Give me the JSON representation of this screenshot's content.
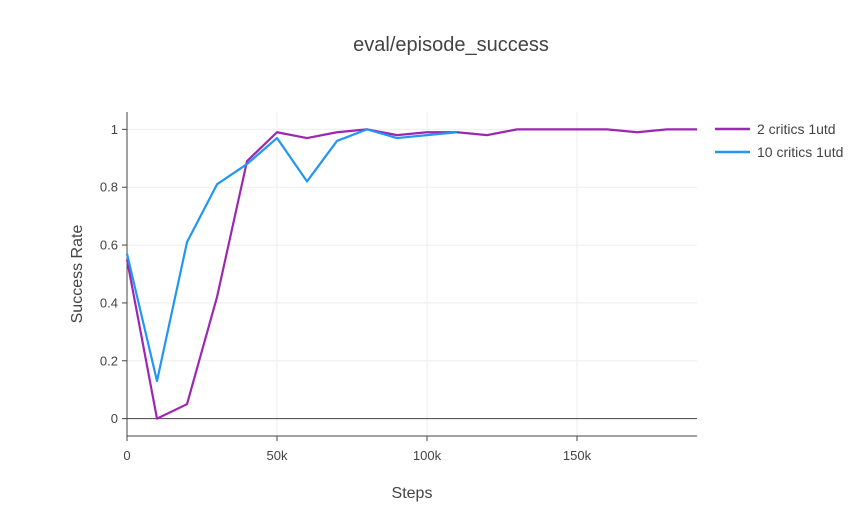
{
  "chart_data": {
    "type": "line",
    "title": "eval/episode_success",
    "xlabel": "Steps",
    "ylabel": "Success Rate",
    "xlim": [
      0,
      190000
    ],
    "ylim": [
      -0.06,
      1.06
    ],
    "x_ticks": [
      0,
      50000,
      100000,
      150000
    ],
    "x_tick_labels": [
      "0",
      "50k",
      "100k",
      "150k"
    ],
    "y_ticks": [
      0,
      0.2,
      0.4,
      0.6,
      0.8,
      1
    ],
    "y_tick_labels": [
      "0",
      "0.2",
      "0.4",
      "0.6",
      "0.8",
      "1"
    ],
    "grid": true,
    "legend_position": "top-right",
    "series": [
      {
        "name": "2 critics 1utd",
        "color": "#9c27b0",
        "x": [
          0,
          10000,
          20000,
          30000,
          40000,
          50000,
          60000,
          70000,
          80000,
          90000,
          100000,
          110000,
          120000,
          130000,
          140000,
          150000,
          160000,
          170000,
          180000,
          190000
        ],
        "y": [
          0.55,
          0.0,
          0.05,
          0.42,
          0.89,
          0.99,
          0.97,
          0.99,
          1.0,
          0.98,
          0.99,
          0.99,
          0.98,
          1.0,
          1.0,
          1.0,
          1.0,
          0.99,
          1.0,
          1.0
        ]
      },
      {
        "name": "10 critics 1utd",
        "color": "#2196f3",
        "x": [
          0,
          10000,
          20000,
          30000,
          40000,
          50000,
          60000,
          70000,
          80000,
          90000,
          100000,
          110000
        ],
        "y": [
          0.57,
          0.13,
          0.61,
          0.81,
          0.88,
          0.97,
          0.82,
          0.96,
          1.0,
          0.97,
          0.98,
          0.99
        ]
      }
    ]
  }
}
